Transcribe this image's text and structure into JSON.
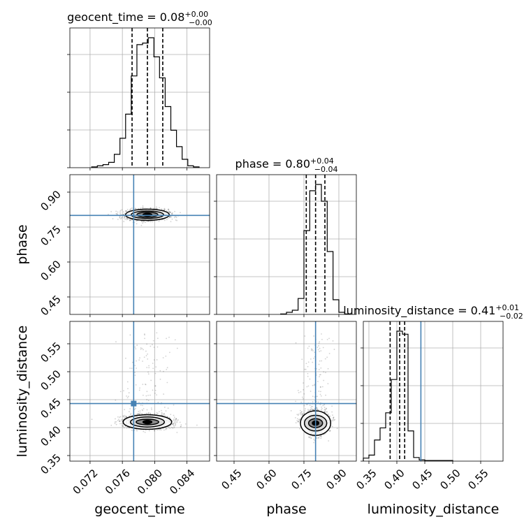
{
  "chart_data": {
    "type": "corner",
    "parameters": [
      "geocent_time",
      "phase",
      "luminosity_distance"
    ],
    "truth_color": "#4682b4",
    "truths": {
      "geocent_time": 0.0774,
      "phase": 0.8,
      "luminosity_distance": 0.443
    },
    "titles": [
      {
        "param": "geocent_time",
        "text": "geocent_time = 0.08",
        "plus": "+0.00",
        "minus": "−0.00"
      },
      {
        "param": "phase",
        "text": "phase = 0.80",
        "plus": "+0.04",
        "minus": "−0.04"
      },
      {
        "param": "luminosity_distance",
        "text": "luminosity_distance = 0.41",
        "plus": "+0.01",
        "minus": "−0.02"
      }
    ],
    "ranges": {
      "geocent_time": [
        0.0695,
        0.0868
      ],
      "phase": [
        0.375,
        0.975
      ],
      "luminosity_distance": [
        0.34,
        0.59
      ]
    },
    "ticks": {
      "geocent_time": {
        "values": [
          0.072,
          0.076,
          0.08,
          0.084
        ],
        "labels": [
          "0.072",
          "0.076",
          "0.080",
          "0.084"
        ]
      },
      "phase": {
        "values": [
          0.45,
          0.6,
          0.75,
          0.9
        ],
        "labels": [
          "0.45",
          "0.60",
          "0.75",
          "0.90"
        ]
      },
      "luminosity_distance": {
        "values": [
          0.35,
          0.4,
          0.45,
          0.5,
          0.55
        ],
        "labels": [
          "0.35",
          "0.40",
          "0.45",
          "0.50",
          "0.55"
        ]
      }
    },
    "quantiles": {
      "geocent_time": [
        0.0772,
        0.0791,
        0.081
      ],
      "phase": [
        0.76,
        0.8,
        0.84
      ],
      "luminosity_distance": [
        0.388,
        0.405,
        0.414
      ]
    },
    "histograms": {
      "geocent_time": {
        "edges": [
          0.0722,
          0.0729,
          0.0736,
          0.0743,
          0.075,
          0.0757,
          0.0764,
          0.0771,
          0.0778,
          0.0785,
          0.0792,
          0.0799,
          0.0806,
          0.0813,
          0.082,
          0.0827,
          0.0834,
          0.0841,
          0.0848,
          0.0855
        ],
        "counts": [
          2,
          5,
          8,
          14,
          35,
          77,
          140,
          240,
          322,
          326,
          340,
          290,
          235,
          160,
          98,
          55,
          22,
          5,
          2
        ]
      },
      "phase": {
        "edges": [
          0.65,
          0.675,
          0.7,
          0.725,
          0.75,
          0.775,
          0.8,
          0.825,
          0.85,
          0.875,
          0.9,
          0.925,
          0.95
        ],
        "counts": [
          1,
          5,
          10,
          38,
          200,
          295,
          310,
          270,
          150,
          35,
          5,
          1
        ]
      },
      "luminosity_distance": {
        "edges": [
          0.34,
          0.35,
          0.36,
          0.37,
          0.38,
          0.39,
          0.4,
          0.41,
          0.42,
          0.43,
          0.44,
          0.45,
          0.5
        ],
        "counts": [
          5,
          10,
          35,
          55,
          80,
          135,
          215,
          210,
          50,
          6,
          2,
          1
        ]
      }
    },
    "contours_2d": [
      {
        "x": "geocent_time",
        "y": "phase",
        "center": [
          0.0791,
          0.803
        ],
        "levels": [
          [
            0.0027,
            0.024
          ],
          [
            0.002,
            0.016
          ],
          [
            0.0013,
            0.011
          ],
          [
            0.00055,
            0.006
          ]
        ]
      },
      {
        "x": "geocent_time",
        "y": "luminosity_distance",
        "center": [
          0.0791,
          0.41
        ],
        "levels": [
          [
            0.003,
            0.013
          ],
          [
            0.0021,
            0.009
          ],
          [
            0.0014,
            0.005
          ],
          [
            0.00055,
            0.003
          ]
        ]
      },
      {
        "x": "phase",
        "y": "luminosity_distance",
        "center": [
          0.8,
          0.408
        ],
        "levels": [
          [
            0.065,
            0.022
          ],
          [
            0.048,
            0.014
          ],
          [
            0.03,
            0.008
          ],
          [
            0.014,
            0.004
          ]
        ]
      }
    ]
  }
}
